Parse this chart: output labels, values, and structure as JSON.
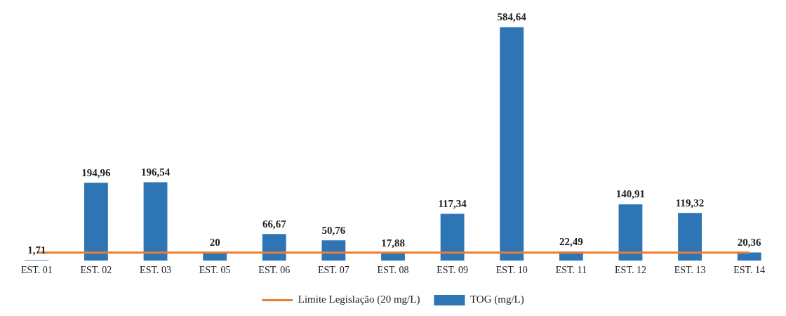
{
  "chart_data": {
    "type": "bar",
    "categories": [
      "EST. 01",
      "EST. 02",
      "EST. 03",
      "EST. 05",
      "EST. 06",
      "EST. 07",
      "EST. 08",
      "EST. 09",
      "EST. 10",
      "EST. 11",
      "EST. 12",
      "EST. 13",
      "EST. 14"
    ],
    "series": [
      {
        "name": "TOG (mg/L)",
        "color": "#2e75b6",
        "values": [
          1.71,
          194.96,
          196.54,
          20,
          66.67,
          50.76,
          17.88,
          117.34,
          584.64,
          22.49,
          140.91,
          119.32,
          20.36
        ],
        "value_labels": [
          "1,71",
          "194,96",
          "196,54",
          "20",
          "66,67",
          "50,76",
          "17,88",
          "117,34",
          "584,64",
          "22,49",
          "140,91",
          "119,32",
          "20,36"
        ]
      },
      {
        "name": "Limite Legislação (20 mg/L)",
        "type": "line",
        "color": "#ed7d31",
        "values": [
          20,
          20,
          20,
          20,
          20,
          20,
          20,
          20,
          20,
          20,
          20,
          20,
          20
        ]
      }
    ],
    "legend": "bottom",
    "grid": false,
    "marker": "none"
  }
}
